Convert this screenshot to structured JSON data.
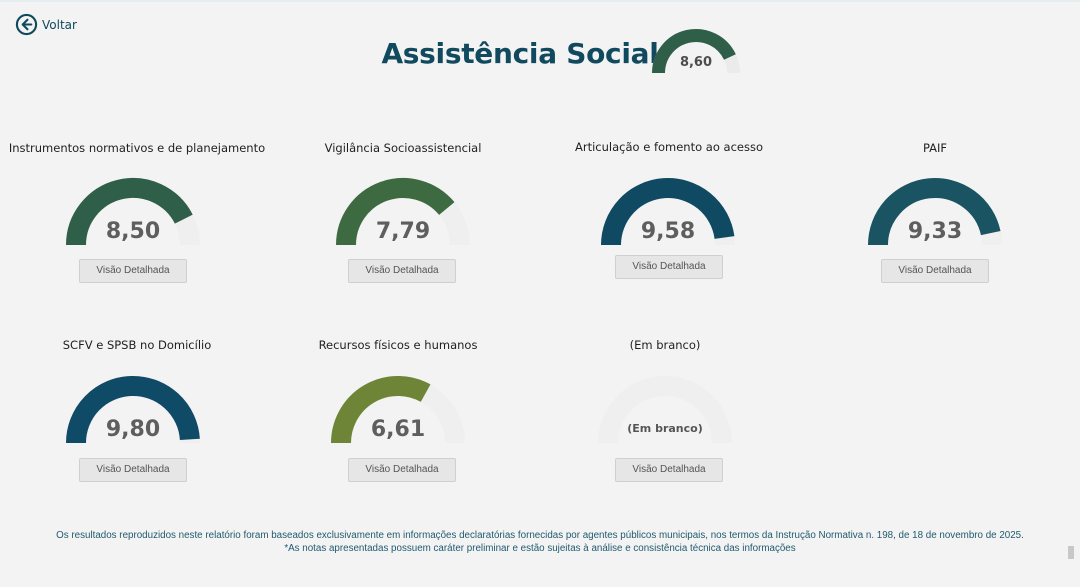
{
  "nav": {
    "back_label": "Voltar"
  },
  "header": {
    "title": "Assistência Social",
    "score_display": "8,60",
    "score": 8.6,
    "color": "#2f5e49"
  },
  "gauge_scale": {
    "min": 0,
    "max": 10
  },
  "cards": [
    {
      "title": "Instrumentos normativos e de planejamento",
      "display": "8,50",
      "value": 8.5,
      "color": "#2f5e49",
      "button": "Visão Detalhada"
    },
    {
      "title": "Vigilância Socioassistencial",
      "display": "7,79",
      "value": 7.79,
      "color": "#3e6a42",
      "button": "Visão Detalhada"
    },
    {
      "title": "Articulação e fomento ao acesso",
      "display": "9,58",
      "value": 9.58,
      "color": "#0f4a62",
      "button": "Visão Detalhada"
    },
    {
      "title": "PAIF",
      "display": "9,33",
      "value": 9.33,
      "color": "#1a5462",
      "button": "Visão Detalhada"
    },
    {
      "title": "SCFV e SPSB no Domicílio",
      "display": "9,80",
      "value": 9.8,
      "color": "#0f4a66",
      "button": "Visão Detalhada"
    },
    {
      "title": "Recursos físicos e humanos",
      "display": "6,61",
      "value": 6.61,
      "color": "#6e8437",
      "button": "Visão Detalhada"
    },
    {
      "title": "(Em branco)",
      "display": "(Em branco)",
      "value": null,
      "color": "#efefef",
      "button": "Visão Detalhada"
    }
  ],
  "footer": {
    "line1": "Os resultados reproduzidos neste relatório foram baseados exclusivamente em informações declaratórias fornecidas por agentes públicos municipais, nos termos da Instrução Normativa n. 198, de 18 de novembro de 2025.",
    "line2": "*As notas apresentadas possuem caráter preliminar e estão sujeitas à análise e consistência técnica das informações"
  }
}
